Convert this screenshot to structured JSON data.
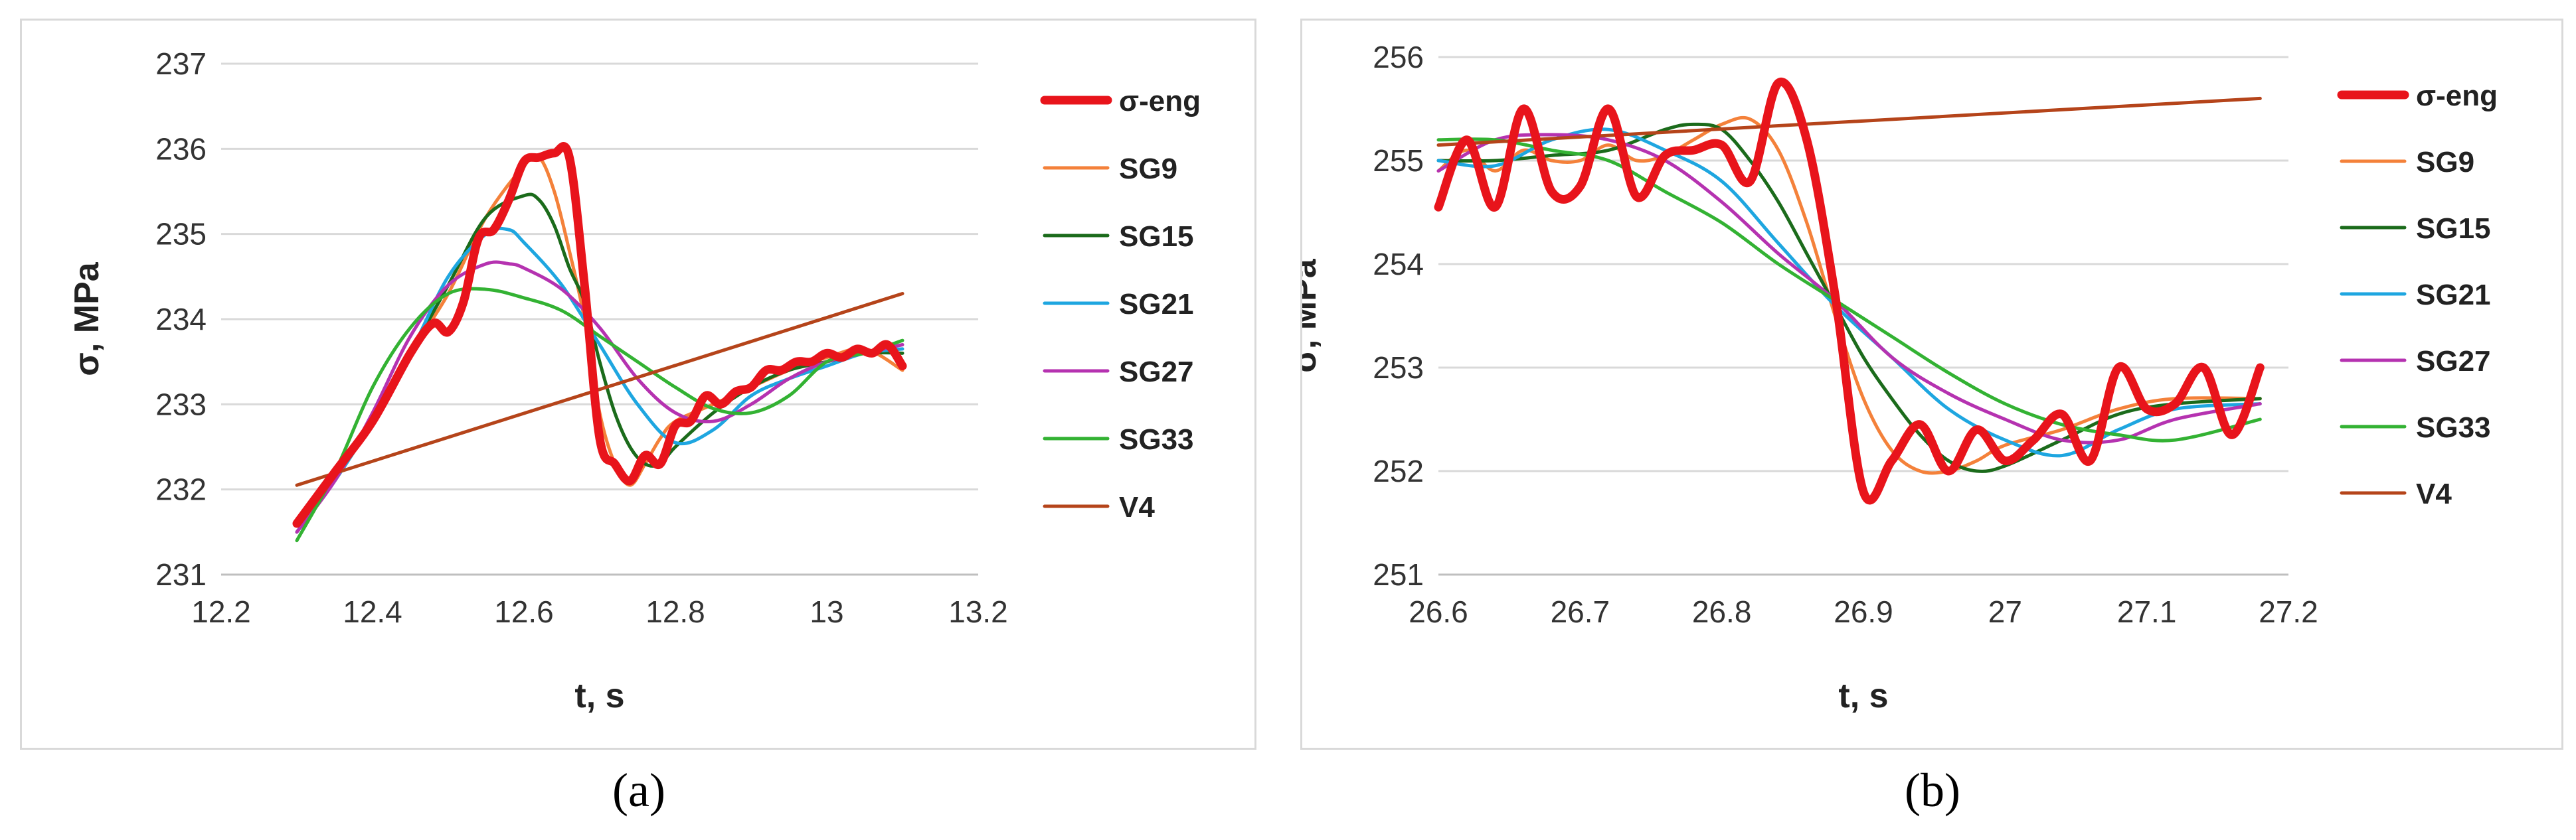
{
  "captions": [
    "(a)",
    "(b)"
  ],
  "colors": {
    "σ-eng": "#e8141b",
    "SG9": "#f4813a",
    "SG15": "#1b6b1b",
    "SG21": "#1ea6e0",
    "SG27": "#b532b0",
    "SG33": "#33b233",
    "V4": "#b5441a"
  },
  "chart_data": [
    {
      "type": "line",
      "xlabel": "t, s",
      "ylabel": "σ, MPa",
      "xlim": [
        12.2,
        13.2
      ],
      "ylim": [
        231,
        237
      ],
      "xticks": [
        12.2,
        12.4,
        12.6,
        12.8,
        13,
        13.2
      ],
      "xtick_labels": [
        "12.2",
        "12.4",
        "12.6",
        "12.8",
        "13",
        "13.2"
      ],
      "yticks": [
        231,
        232,
        233,
        234,
        235,
        236,
        237
      ],
      "ytick_labels": [
        "231",
        "232",
        "233",
        "234",
        "235",
        "236",
        "237"
      ],
      "grid": "horizontal",
      "legend": "right",
      "series": [
        {
          "name": "σ-eng",
          "x": [
            12.3,
            12.35,
            12.4,
            12.45,
            12.48,
            12.5,
            12.52,
            12.54,
            12.56,
            12.58,
            12.6,
            12.62,
            12.64,
            12.66,
            12.68,
            12.7,
            12.72,
            12.74,
            12.76,
            12.78,
            12.8,
            12.82,
            12.84,
            12.86,
            12.88,
            12.9,
            12.92,
            12.94,
            12.96,
            12.98,
            13.0,
            13.02,
            13.04,
            13.06,
            13.08,
            13.1
          ],
          "y": [
            231.6,
            232.2,
            232.8,
            233.6,
            233.95,
            233.85,
            234.2,
            234.95,
            235.05,
            235.4,
            235.85,
            235.9,
            235.95,
            235.9,
            234.4,
            232.6,
            232.3,
            232.1,
            232.4,
            232.3,
            232.75,
            232.8,
            233.1,
            233.0,
            233.15,
            233.2,
            233.4,
            233.4,
            233.5,
            233.5,
            233.6,
            233.55,
            233.65,
            233.6,
            233.7,
            233.45
          ]
        },
        {
          "name": "SG9",
          "x": [
            12.3,
            12.35,
            12.4,
            12.45,
            12.5,
            12.55,
            12.6,
            12.62,
            12.64,
            12.66,
            12.68,
            12.7,
            12.72,
            12.74,
            12.76,
            12.78,
            12.8,
            12.85,
            12.9,
            12.95,
            13.0,
            13.05,
            13.1
          ],
          "y": [
            231.6,
            232.2,
            232.8,
            233.6,
            234.3,
            235.2,
            235.8,
            235.9,
            235.5,
            234.8,
            234.0,
            232.9,
            232.3,
            232.05,
            232.3,
            232.6,
            232.8,
            233.0,
            233.2,
            233.4,
            233.55,
            233.65,
            233.4
          ]
        },
        {
          "name": "SG15",
          "x": [
            12.3,
            12.35,
            12.4,
            12.45,
            12.5,
            12.55,
            12.6,
            12.62,
            12.64,
            12.66,
            12.68,
            12.7,
            12.72,
            12.74,
            12.76,
            12.78,
            12.8,
            12.85,
            12.9,
            12.95,
            13.0,
            13.05,
            13.1
          ],
          "y": [
            231.5,
            232.1,
            232.8,
            233.6,
            234.4,
            235.2,
            235.45,
            235.4,
            235.1,
            234.6,
            234.2,
            233.5,
            232.9,
            232.5,
            232.3,
            232.3,
            232.5,
            232.9,
            233.2,
            233.4,
            233.5,
            233.6,
            233.6
          ]
        },
        {
          "name": "SG21",
          "x": [
            12.3,
            12.35,
            12.4,
            12.45,
            12.5,
            12.55,
            12.58,
            12.6,
            12.65,
            12.7,
            12.75,
            12.8,
            12.85,
            12.9,
            12.95,
            13.0,
            13.05,
            13.1
          ],
          "y": [
            231.5,
            232.1,
            232.8,
            233.6,
            234.5,
            235.0,
            235.05,
            234.9,
            234.4,
            233.7,
            233.0,
            232.55,
            232.7,
            233.1,
            233.3,
            233.45,
            233.6,
            233.65
          ]
        },
        {
          "name": "SG27",
          "x": [
            12.3,
            12.35,
            12.4,
            12.45,
            12.5,
            12.55,
            12.58,
            12.6,
            12.65,
            12.7,
            12.75,
            12.8,
            12.85,
            12.9,
            12.95,
            13.0,
            13.05,
            13.1
          ],
          "y": [
            231.5,
            232.1,
            232.9,
            233.8,
            234.4,
            234.65,
            234.65,
            234.6,
            234.35,
            233.9,
            233.3,
            232.9,
            232.8,
            233.0,
            233.3,
            233.5,
            233.6,
            233.7
          ]
        },
        {
          "name": "SG33",
          "x": [
            12.3,
            12.35,
            12.4,
            12.45,
            12.5,
            12.55,
            12.6,
            12.65,
            12.7,
            12.75,
            12.8,
            12.85,
            12.9,
            12.95,
            13.0,
            13.05,
            13.1
          ],
          "y": [
            231.4,
            232.2,
            233.2,
            233.9,
            234.3,
            234.35,
            234.25,
            234.1,
            233.8,
            233.5,
            233.2,
            232.95,
            232.9,
            233.1,
            233.5,
            233.6,
            233.75
          ]
        },
        {
          "name": "V4",
          "x": [
            12.3,
            13.1
          ],
          "y": [
            232.05,
            234.3
          ]
        }
      ]
    },
    {
      "type": "line",
      "xlabel": "t, s",
      "ylabel": "σ, MPa",
      "xlim": [
        26.6,
        27.2
      ],
      "ylim": [
        251,
        256
      ],
      "xticks": [
        26.6,
        26.7,
        26.8,
        26.9,
        27.0,
        27.1,
        27.2
      ],
      "xtick_labels": [
        "26.6",
        "26.7",
        "26.8",
        "26.9",
        "27",
        "27.1",
        "27.2"
      ],
      "yticks": [
        251,
        252,
        253,
        254,
        255,
        256
      ],
      "ytick_labels": [
        "251",
        "252",
        "253",
        "254",
        "255",
        "256"
      ],
      "grid": "horizontal",
      "legend": "right",
      "series": [
        {
          "name": "σ-eng",
          "x": [
            26.6,
            26.62,
            26.64,
            26.66,
            26.68,
            26.7,
            26.72,
            26.74,
            26.76,
            26.78,
            26.8,
            26.82,
            26.84,
            26.86,
            26.88,
            26.9,
            26.92,
            26.94,
            26.96,
            26.98,
            27.0,
            27.02,
            27.04,
            27.06,
            27.08,
            27.1,
            27.12,
            27.14,
            27.16,
            27.18
          ],
          "y": [
            254.55,
            255.2,
            254.55,
            255.5,
            254.7,
            254.75,
            255.5,
            254.65,
            255.05,
            255.1,
            255.15,
            254.8,
            255.75,
            255.2,
            253.7,
            251.8,
            252.1,
            252.45,
            252.0,
            252.4,
            252.1,
            252.3,
            252.55,
            252.1,
            253.0,
            252.6,
            252.65,
            253.0,
            252.35,
            253.0
          ]
        },
        {
          "name": "SG9",
          "x": [
            26.6,
            26.62,
            26.64,
            26.66,
            26.68,
            26.7,
            26.72,
            26.74,
            26.76,
            26.78,
            26.8,
            26.82,
            26.84,
            26.86,
            26.88,
            26.9,
            26.92,
            26.94,
            26.96,
            26.98,
            27.0,
            27.04,
            27.08,
            27.12,
            27.18
          ],
          "y": [
            254.9,
            255.1,
            254.9,
            255.1,
            255.0,
            255.0,
            255.15,
            255.0,
            255.05,
            255.2,
            255.35,
            255.4,
            255.1,
            254.4,
            253.5,
            252.7,
            252.2,
            252.0,
            252.0,
            252.1,
            252.25,
            252.4,
            252.6,
            252.7,
            252.7
          ]
        },
        {
          "name": "SG15",
          "x": [
            26.6,
            26.64,
            26.68,
            26.72,
            26.76,
            26.78,
            26.8,
            26.82,
            26.84,
            26.86,
            26.88,
            26.9,
            26.92,
            26.94,
            26.96,
            26.98,
            27.0,
            27.04,
            27.08,
            27.12,
            27.18
          ],
          "y": [
            255.0,
            255.0,
            255.05,
            255.1,
            255.3,
            255.35,
            255.3,
            255.0,
            254.6,
            254.1,
            253.6,
            253.1,
            252.7,
            252.35,
            252.1,
            252.0,
            252.05,
            252.3,
            252.55,
            252.65,
            252.7
          ]
        },
        {
          "name": "SG21",
          "x": [
            26.6,
            26.64,
            26.68,
            26.72,
            26.76,
            26.8,
            26.84,
            26.88,
            26.92,
            26.96,
            27.0,
            27.04,
            27.08,
            27.12,
            27.18
          ],
          "y": [
            255.0,
            254.95,
            255.2,
            255.3,
            255.1,
            254.8,
            254.2,
            253.6,
            253.1,
            252.6,
            252.3,
            252.15,
            252.4,
            252.6,
            252.65
          ]
        },
        {
          "name": "SG27",
          "x": [
            26.6,
            26.64,
            26.68,
            26.72,
            26.76,
            26.8,
            26.84,
            26.88,
            26.92,
            26.96,
            27.0,
            27.04,
            27.08,
            27.12,
            27.18
          ],
          "y": [
            254.9,
            255.2,
            255.25,
            255.2,
            255.0,
            254.6,
            254.1,
            253.65,
            253.1,
            252.75,
            252.5,
            252.3,
            252.3,
            252.5,
            252.65
          ]
        },
        {
          "name": "SG33",
          "x": [
            26.6,
            26.64,
            26.68,
            26.72,
            26.76,
            26.8,
            26.84,
            26.88,
            26.92,
            26.96,
            27.0,
            27.04,
            27.08,
            27.12,
            27.18
          ],
          "y": [
            255.2,
            255.2,
            255.1,
            255.0,
            254.7,
            254.4,
            254.0,
            253.65,
            253.3,
            252.95,
            252.65,
            252.45,
            252.35,
            252.3,
            252.5
          ]
        },
        {
          "name": "V4",
          "x": [
            26.6,
            27.18
          ],
          "y": [
            255.15,
            255.6
          ]
        }
      ]
    }
  ]
}
